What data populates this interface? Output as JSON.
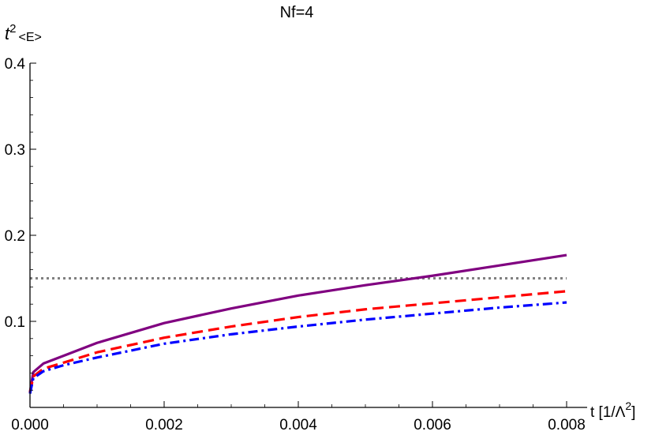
{
  "chart_data": {
    "type": "line",
    "title": "Nf=4",
    "xlabel": {
      "base": "t [1/Λ",
      "sup": "2",
      "close": "]"
    },
    "ylabel": {
      "base": "t",
      "sup": "2",
      "rest": "<E>"
    },
    "xlim": [
      0,
      0.008
    ],
    "ylim": [
      0,
      0.4
    ],
    "x_ticks": [
      "0.000",
      "0.002",
      "0.004",
      "0.006",
      "0.008"
    ],
    "y_ticks": [
      "0.1",
      "0.2",
      "0.3",
      "0.4"
    ],
    "reference_line": {
      "y": 0.15,
      "color": "#808080",
      "style": "dotted"
    },
    "series": [
      {
        "color": "#800080",
        "style": "solid",
        "x": [
          0,
          5e-05,
          0.0002,
          0.0005,
          0.001,
          0.002,
          0.003,
          0.004,
          0.005,
          0.006,
          0.007,
          0.008
        ],
        "y": [
          0.018,
          0.041,
          0.051,
          0.06,
          0.075,
          0.098,
          0.115,
          0.13,
          0.142,
          0.153,
          0.165,
          0.177
        ]
      },
      {
        "color": "#ff0000",
        "style": "dashed",
        "x": [
          0,
          5e-05,
          0.0002,
          0.0005,
          0.001,
          0.002,
          0.003,
          0.004,
          0.005,
          0.006,
          0.007,
          0.008
        ],
        "y": [
          0.017,
          0.036,
          0.045,
          0.052,
          0.064,
          0.081,
          0.094,
          0.105,
          0.114,
          0.121,
          0.128,
          0.135
        ]
      },
      {
        "color": "#0000ff",
        "style": "dashdot",
        "x": [
          0,
          5e-05,
          0.0002,
          0.0005,
          0.001,
          0.002,
          0.003,
          0.004,
          0.005,
          0.006,
          0.007,
          0.008
        ],
        "y": [
          0.016,
          0.034,
          0.042,
          0.049,
          0.058,
          0.074,
          0.085,
          0.094,
          0.102,
          0.109,
          0.116,
          0.122
        ]
      }
    ]
  }
}
